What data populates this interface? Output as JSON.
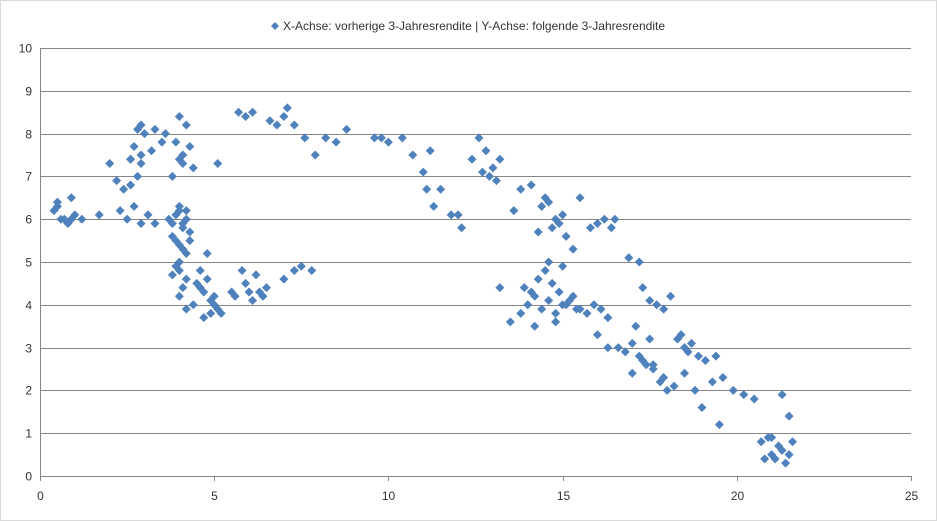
{
  "legend": {
    "label": "X-Achse: vorherige 3-Jahresrendite | Y-Achse: folgende 3-Jahresrendite",
    "marker_color": "#4f81bd",
    "placement": "top"
  },
  "chart_data": {
    "type": "scatter",
    "title": "",
    "xlabel": "",
    "ylabel": "",
    "xlim": [
      0,
      25
    ],
    "ylim": [
      0,
      10
    ],
    "x_ticks": [
      "0",
      "5",
      "10",
      "15",
      "20",
      "25"
    ],
    "y_ticks": [
      "0",
      "1",
      "2",
      "3",
      "4",
      "5",
      "6",
      "7",
      "8",
      "9",
      "10"
    ],
    "grid": {
      "horizontal": true,
      "vertical": false
    },
    "series": [
      {
        "name": "X-Achse: vorherige 3-Jahresrendite | Y-Achse: folgende 3-Jahresrendite",
        "color": "#4f81bd",
        "marker": "diamond",
        "x": [
          0.4,
          0.5,
          0.6,
          0.8,
          1.0,
          0.5,
          0.7,
          0.9,
          1.2,
          0.9,
          1.7,
          2.3,
          2.5,
          2.7,
          2.9,
          3.1,
          3.3,
          2.6,
          2.8,
          2.4,
          2.2,
          2.0,
          2.6,
          2.9,
          2.7,
          2.9,
          3.2,
          3.5,
          2.8,
          3.0,
          2.6,
          3.3,
          2.9,
          3.7,
          3.8,
          3.9,
          4.0,
          4.1,
          4.2,
          4.3,
          3.9,
          4.0,
          4.2,
          4.1,
          3.8,
          4.0,
          4.0,
          3.8,
          3.6,
          4.2,
          4.3,
          4.1,
          4.4,
          4.0,
          3.9,
          4.1,
          4.2,
          4.0,
          3.9,
          4.1,
          4.3,
          4.2,
          4.0,
          3.8,
          4.1,
          4.0,
          4.5,
          4.7,
          4.9,
          5.0,
          5.1,
          4.6,
          4.8,
          4.4,
          4.2,
          5.2,
          4.9,
          4.7,
          5.0,
          4.6,
          4.8,
          5.5,
          5.8,
          6.2,
          6.0,
          6.4,
          6.5,
          7.0,
          7.5,
          7.8,
          7.3,
          5.6,
          5.9,
          6.1,
          6.3,
          5.7,
          5.9,
          6.1,
          6.6,
          6.8,
          7.0,
          7.1,
          7.3,
          7.6,
          7.9,
          8.2,
          8.5,
          8.8,
          5.1,
          9.6,
          9.8,
          10.0,
          10.4,
          10.7,
          11.0,
          11.2,
          11.5,
          11.8,
          12.1,
          12.4,
          11.3,
          11.1,
          12.0,
          12.6,
          12.8,
          13.0,
          12.9,
          13.2,
          13.1,
          12.7,
          13.6,
          13.8,
          14.1,
          14.5,
          14.8,
          14.3,
          14.6,
          14.9,
          15.1,
          15.3,
          15.5,
          15.0,
          14.7,
          14.4,
          15.8,
          16.0,
          16.2,
          16.5,
          16.9,
          17.2,
          16.4,
          13.2,
          13.5,
          13.8,
          14.0,
          14.2,
          14.4,
          14.6,
          14.8,
          15.0,
          15.2,
          15.4,
          14.1,
          14.3,
          14.5,
          14.7,
          14.9,
          15.1,
          15.3,
          15.5,
          15.7,
          15.9,
          16.1,
          16.3,
          14.2,
          14.6,
          15.0,
          13.9,
          14.8,
          16.0,
          16.3,
          16.6,
          16.8,
          17.0,
          17.2,
          17.4,
          17.6,
          17.8,
          18.0,
          17.1,
          17.5,
          17.3,
          17.5,
          17.7,
          17.9,
          18.1,
          18.3,
          18.5,
          18.7,
          18.9,
          19.1,
          18.4,
          18.6,
          17.0,
          17.3,
          17.6,
          17.9,
          18.2,
          18.5,
          18.8,
          19.3,
          19.6,
          19.9,
          20.2,
          20.5,
          19.4,
          19.0,
          19.5,
          20.7,
          20.9,
          21.0,
          21.1,
          21.2,
          21.3,
          21.4,
          21.5,
          21.6,
          20.8,
          21.0,
          21.3,
          21.5
        ],
        "y": [
          6.2,
          6.4,
          6.0,
          5.9,
          6.1,
          6.3,
          6.0,
          6.5,
          6.0,
          6.0,
          6.1,
          6.2,
          6.0,
          6.3,
          5.9,
          6.1,
          5.9,
          6.8,
          7.0,
          6.7,
          6.9,
          7.3,
          7.4,
          7.3,
          7.7,
          7.5,
          7.6,
          7.8,
          8.1,
          8.0,
          7.4,
          8.1,
          8.2,
          6.0,
          5.9,
          6.1,
          6.2,
          5.8,
          6.0,
          5.7,
          5.5,
          5.4,
          6.2,
          5.9,
          5.6,
          6.3,
          7.4,
          7.0,
          8.0,
          8.2,
          7.7,
          7.5,
          7.2,
          8.4,
          7.8,
          7.3,
          5.2,
          5.0,
          4.9,
          5.3,
          5.5,
          4.6,
          4.8,
          4.7,
          4.4,
          4.2,
          4.5,
          4.3,
          4.1,
          4.0,
          3.9,
          4.4,
          4.6,
          4.0,
          3.9,
          3.8,
          3.8,
          3.7,
          4.2,
          4.8,
          5.2,
          4.3,
          4.8,
          4.7,
          4.3,
          4.2,
          4.4,
          4.6,
          4.9,
          4.8,
          4.8,
          4.2,
          4.5,
          4.1,
          4.3,
          8.5,
          8.4,
          8.5,
          8.3,
          8.2,
          8.4,
          8.6,
          8.2,
          7.9,
          7.5,
          7.9,
          7.8,
          8.1,
          7.3,
          7.9,
          7.9,
          7.8,
          7.9,
          7.5,
          7.1,
          7.6,
          6.7,
          6.1,
          5.8,
          7.4,
          6.3,
          6.7,
          6.1,
          7.9,
          7.6,
          7.2,
          7.0,
          7.4,
          6.9,
          7.1,
          6.2,
          6.7,
          6.8,
          6.5,
          6.0,
          5.7,
          6.4,
          5.9,
          5.6,
          5.3,
          6.5,
          6.1,
          5.8,
          6.3,
          5.8,
          5.9,
          6.0,
          6.0,
          5.1,
          5.0,
          5.8,
          4.4,
          3.6,
          3.8,
          4.0,
          4.2,
          3.9,
          4.1,
          3.8,
          4.0,
          4.1,
          3.9,
          4.3,
          4.6,
          4.8,
          4.5,
          4.3,
          4.0,
          4.2,
          3.9,
          3.8,
          4.0,
          3.9,
          3.7,
          3.5,
          5.0,
          4.9,
          4.4,
          3.6,
          3.3,
          3.0,
          3.0,
          2.9,
          3.1,
          2.8,
          2.6,
          2.5,
          2.2,
          2.0,
          3.5,
          3.2,
          4.4,
          4.1,
          4.0,
          3.9,
          4.2,
          3.2,
          3.0,
          3.1,
          2.8,
          2.7,
          3.3,
          2.9,
          2.4,
          2.7,
          2.6,
          2.3,
          2.1,
          2.4,
          2.0,
          2.2,
          2.3,
          2.0,
          1.9,
          1.8,
          2.8,
          1.6,
          1.2,
          0.8,
          0.9,
          0.5,
          0.4,
          0.7,
          0.6,
          0.3,
          0.5,
          0.8,
          0.4,
          0.9,
          1.9,
          1.4
        ]
      }
    ]
  }
}
